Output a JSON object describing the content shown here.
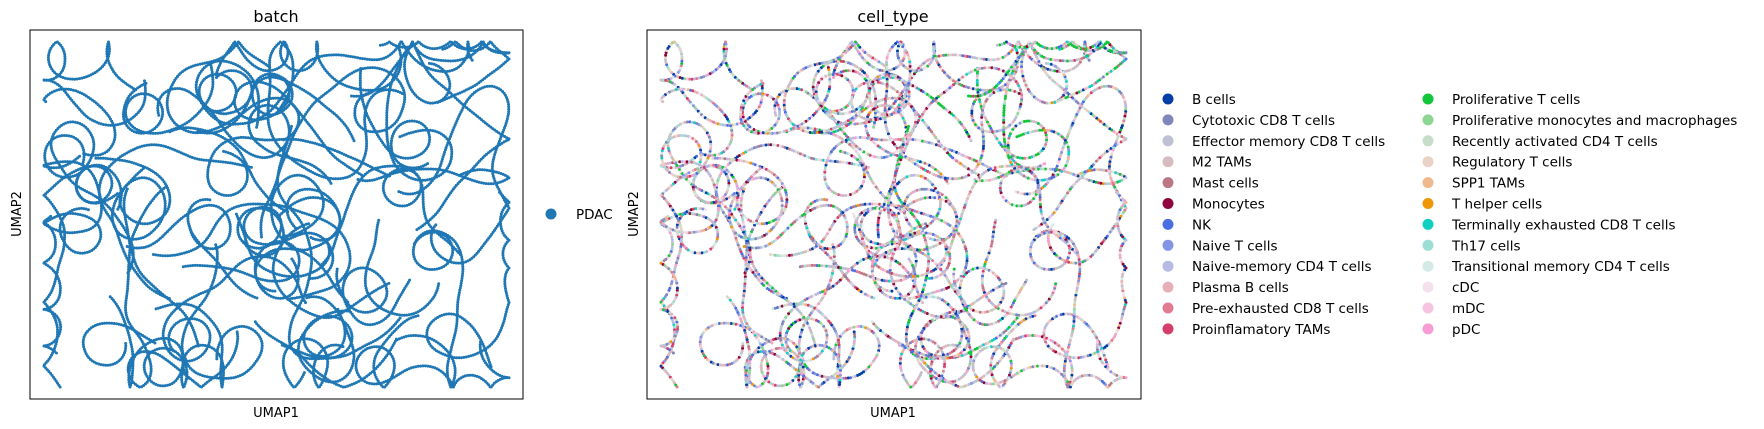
{
  "chart_data": [
    {
      "type": "scatter",
      "title": "batch",
      "xlabel": "UMAP1",
      "ylabel": "UMAP2",
      "grid": false,
      "ticks": false,
      "legend_position": "right",
      "legend": [
        {
          "name": "PDAC",
          "color": "#1f77b4"
        }
      ]
    },
    {
      "type": "scatter",
      "title": "cell_type",
      "xlabel": "UMAP1",
      "ylabel": "UMAP2",
      "grid": false,
      "ticks": false,
      "legend_position": "right",
      "legend": [
        {
          "name": "B cells",
          "color": "#023fa5"
        },
        {
          "name": "Cytotoxic CD8 T cells",
          "color": "#7d87b9"
        },
        {
          "name": "Effector memory CD8 T cells",
          "color": "#bec1d4"
        },
        {
          "name": "M2 TAMs",
          "color": "#d6bcc0"
        },
        {
          "name": "Mast cells",
          "color": "#bb7784"
        },
        {
          "name": "Monocytes",
          "color": "#8e063b"
        },
        {
          "name": "NK",
          "color": "#4a6fe3"
        },
        {
          "name": "Naive T cells",
          "color": "#8595e1"
        },
        {
          "name": "Naive-memory CD4 T cells",
          "color": "#b5bbe3"
        },
        {
          "name": "Plasma B cells",
          "color": "#e6afb9"
        },
        {
          "name": "Pre-exhausted CD8 T cells",
          "color": "#e07b91"
        },
        {
          "name": "Proinflamatory TAMs",
          "color": "#d33f6a"
        },
        {
          "name": "Proliferative T cells",
          "color": "#11c638"
        },
        {
          "name": "Proliferative monocytes and macrophages",
          "color": "#8dd593"
        },
        {
          "name": "Recently activated CD4 T cells",
          "color": "#c6dec7"
        },
        {
          "name": "Regulatory T cells",
          "color": "#ead3c6"
        },
        {
          "name": "SPP1 TAMs",
          "color": "#f0b98d"
        },
        {
          "name": "T helper cells",
          "color": "#ef9708"
        },
        {
          "name": "Terminally exhausted CD8 T cells",
          "color": "#0fcfc0"
        },
        {
          "name": "Th17 cells",
          "color": "#9cded6"
        },
        {
          "name": "Transitional memory CD4 T cells",
          "color": "#d5eae7"
        },
        {
          "name": "cDC",
          "color": "#f3e1eb"
        },
        {
          "name": "mDC",
          "color": "#f6c4e1"
        },
        {
          "name": "pDC",
          "color": "#f79cd4"
        }
      ]
    }
  ]
}
